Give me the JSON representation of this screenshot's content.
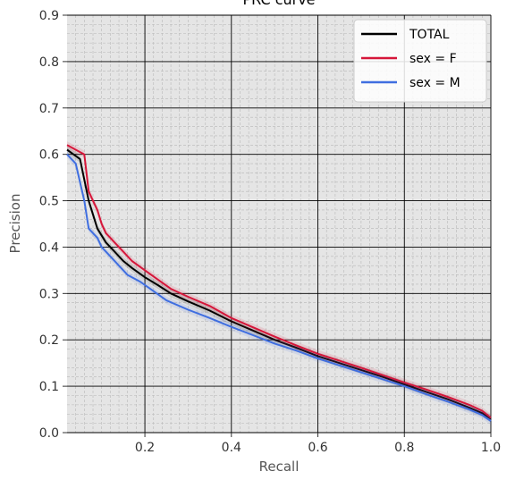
{
  "chart_data": {
    "type": "line",
    "title": "PRC curve",
    "xlabel": "Recall",
    "ylabel": "Precision",
    "xlim": [
      0.02,
      1.0
    ],
    "ylim": [
      0.0,
      0.9
    ],
    "xticks": [
      0.2,
      0.4,
      0.6,
      0.8,
      1.0
    ],
    "xtick_labels": [
      "0.2",
      "0.4",
      "0.6",
      "0.8",
      "1.0"
    ],
    "yticks": [
      0.0,
      0.1,
      0.2,
      0.3,
      0.4,
      0.5,
      0.6,
      0.7,
      0.8,
      0.9
    ],
    "ytick_labels": [
      "0.0",
      "0.1",
      "0.2",
      "0.3",
      "0.4",
      "0.5",
      "0.6",
      "0.7",
      "0.8",
      "0.9"
    ],
    "grid": true,
    "legend_position": "top-right",
    "background_color": "#e5e5e5",
    "series": [
      {
        "name": "TOTAL",
        "color": "#000000",
        "points": [
          [
            0.02,
            0.61
          ],
          [
            0.05,
            0.59
          ],
          [
            0.07,
            0.5
          ],
          [
            0.09,
            0.44
          ],
          [
            0.11,
            0.41
          ],
          [
            0.13,
            0.39
          ],
          [
            0.15,
            0.37
          ],
          [
            0.17,
            0.355
          ],
          [
            0.2,
            0.335
          ],
          [
            0.23,
            0.318
          ],
          [
            0.26,
            0.3
          ],
          [
            0.3,
            0.283
          ],
          [
            0.35,
            0.263
          ],
          [
            0.4,
            0.24
          ],
          [
            0.45,
            0.22
          ],
          [
            0.5,
            0.2
          ],
          [
            0.55,
            0.183
          ],
          [
            0.6,
            0.165
          ],
          [
            0.65,
            0.15
          ],
          [
            0.7,
            0.135
          ],
          [
            0.75,
            0.12
          ],
          [
            0.8,
            0.104
          ],
          [
            0.85,
            0.088
          ],
          [
            0.9,
            0.072
          ],
          [
            0.95,
            0.054
          ],
          [
            0.98,
            0.042
          ],
          [
            1.0,
            0.03
          ]
        ]
      },
      {
        "name": "sex = F",
        "color": "#d6163a",
        "points": [
          [
            0.02,
            0.62
          ],
          [
            0.06,
            0.6
          ],
          [
            0.07,
            0.52
          ],
          [
            0.08,
            0.5
          ],
          [
            0.09,
            0.48
          ],
          [
            0.1,
            0.45
          ],
          [
            0.11,
            0.43
          ],
          [
            0.12,
            0.42
          ],
          [
            0.13,
            0.41
          ],
          [
            0.15,
            0.39
          ],
          [
            0.17,
            0.37
          ],
          [
            0.2,
            0.35
          ],
          [
            0.23,
            0.33
          ],
          [
            0.26,
            0.31
          ],
          [
            0.3,
            0.293
          ],
          [
            0.35,
            0.273
          ],
          [
            0.4,
            0.247
          ],
          [
            0.45,
            0.227
          ],
          [
            0.5,
            0.207
          ],
          [
            0.55,
            0.188
          ],
          [
            0.6,
            0.17
          ],
          [
            0.65,
            0.155
          ],
          [
            0.7,
            0.14
          ],
          [
            0.75,
            0.124
          ],
          [
            0.8,
            0.108
          ],
          [
            0.85,
            0.093
          ],
          [
            0.9,
            0.077
          ],
          [
            0.95,
            0.06
          ],
          [
            0.98,
            0.047
          ],
          [
            1.0,
            0.032
          ]
        ]
      },
      {
        "name": "sex = M",
        "color": "#3f6ee0",
        "points": [
          [
            0.02,
            0.6
          ],
          [
            0.04,
            0.58
          ],
          [
            0.06,
            0.5
          ],
          [
            0.07,
            0.44
          ],
          [
            0.09,
            0.42
          ],
          [
            0.1,
            0.4
          ],
          [
            0.12,
            0.38
          ],
          [
            0.14,
            0.36
          ],
          [
            0.16,
            0.34
          ],
          [
            0.19,
            0.325
          ],
          [
            0.22,
            0.305
          ],
          [
            0.25,
            0.285
          ],
          [
            0.3,
            0.265
          ],
          [
            0.35,
            0.247
          ],
          [
            0.4,
            0.228
          ],
          [
            0.45,
            0.21
          ],
          [
            0.5,
            0.192
          ],
          [
            0.55,
            0.177
          ],
          [
            0.6,
            0.16
          ],
          [
            0.65,
            0.145
          ],
          [
            0.7,
            0.13
          ],
          [
            0.75,
            0.115
          ],
          [
            0.8,
            0.1
          ],
          [
            0.85,
            0.083
          ],
          [
            0.9,
            0.067
          ],
          [
            0.95,
            0.05
          ],
          [
            0.98,
            0.038
          ],
          [
            1.0,
            0.025
          ]
        ]
      }
    ]
  }
}
